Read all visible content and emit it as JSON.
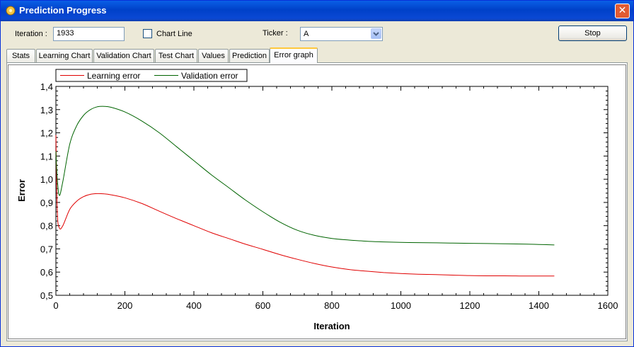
{
  "window": {
    "title": "Prediction Progress",
    "close_label": "✕"
  },
  "controls": {
    "iteration_label": "Iteration :",
    "iteration_value": "1933",
    "chart_line_label": "Chart Line",
    "chart_line_checked": false,
    "ticker_label": "Ticker :",
    "ticker_value": "A",
    "stop_label": "Stop"
  },
  "tabs": [
    {
      "label": "Stats"
    },
    {
      "label": "Learning Chart"
    },
    {
      "label": "Validation Chart"
    },
    {
      "label": "Test Chart"
    },
    {
      "label": "Values"
    },
    {
      "label": "Prediction"
    },
    {
      "label": "Error graph",
      "active": true
    }
  ],
  "chart_data": {
    "type": "line",
    "title": "",
    "xlabel": "Iteration",
    "ylabel": "Error",
    "xlim": [
      0,
      1600
    ],
    "ylim": [
      0.5,
      1.4
    ],
    "x_ticks": [
      "0",
      "200",
      "400",
      "600",
      "800",
      "1000",
      "1200",
      "1400",
      "1600"
    ],
    "y_ticks": [
      "0,5",
      "0,6",
      "0,7",
      "0,8",
      "0,9",
      "1,0",
      "1,1",
      "1,2",
      "1,3",
      "1,4"
    ],
    "legend_position": "top-left",
    "grid": false,
    "series": [
      {
        "name": "Learning error",
        "color": "#e00000",
        "x": [
          0,
          4,
          10,
          20,
          40,
          60,
          80,
          100,
          120,
          140,
          160,
          200,
          250,
          300,
          350,
          400,
          450,
          500,
          550,
          600,
          650,
          700,
          750,
          800,
          850,
          900,
          950,
          1000,
          1050,
          1100,
          1150,
          1200,
          1250,
          1300,
          1350,
          1400,
          1445
        ],
        "y": [
          1.19,
          0.86,
          0.79,
          0.8,
          0.87,
          0.905,
          0.925,
          0.935,
          0.938,
          0.937,
          0.933,
          0.92,
          0.895,
          0.862,
          0.83,
          0.8,
          0.77,
          0.745,
          0.72,
          0.698,
          0.675,
          0.655,
          0.637,
          0.622,
          0.611,
          0.604,
          0.598,
          0.594,
          0.591,
          0.589,
          0.587,
          0.585,
          0.584,
          0.584,
          0.583,
          0.583,
          0.583
        ]
      },
      {
        "name": "Validation error",
        "color": "#006400",
        "x": [
          0,
          4,
          10,
          20,
          40,
          60,
          80,
          100,
          120,
          140,
          160,
          200,
          250,
          300,
          350,
          400,
          450,
          500,
          550,
          600,
          650,
          700,
          750,
          800,
          850,
          900,
          950,
          1000,
          1050,
          1100,
          1150,
          1200,
          1250,
          1300,
          1350,
          1400,
          1445
        ],
        "y": [
          1.12,
          1.0,
          0.93,
          0.99,
          1.15,
          1.23,
          1.275,
          1.3,
          1.312,
          1.314,
          1.31,
          1.29,
          1.25,
          1.2,
          1.14,
          1.08,
          1.02,
          0.965,
          0.91,
          0.86,
          0.815,
          0.78,
          0.758,
          0.745,
          0.738,
          0.733,
          0.73,
          0.728,
          0.727,
          0.726,
          0.725,
          0.724,
          0.723,
          0.722,
          0.721,
          0.719,
          0.717
        ]
      }
    ]
  }
}
